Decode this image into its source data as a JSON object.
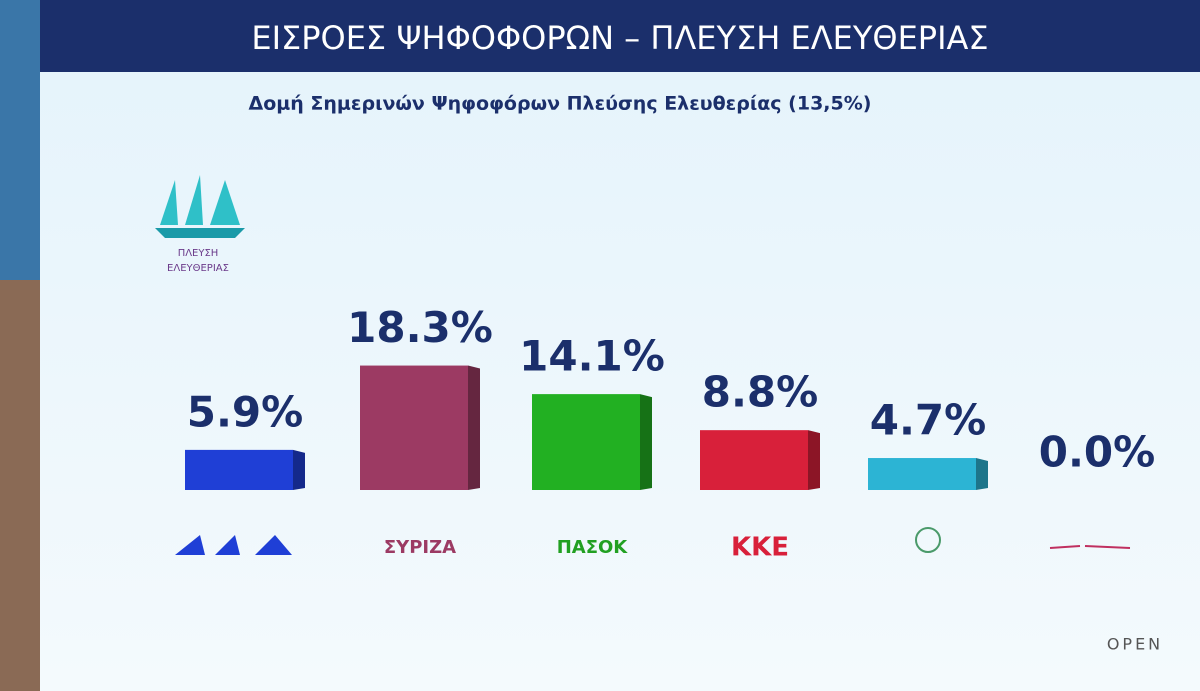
{
  "chart_data": {
    "type": "bar",
    "title": "ΕΙΣΡΟΕΣ ΨΗΦΟΦΟΡΩΝ – ΠΛΕΥΣΗ ΕΛΕΥΘΕΡΙΑΣ",
    "subtitle": "Δομή Σημερινών Ψηφοφόρων Πλεύσης Ελευθερίας (13,5%)",
    "logo_lines": [
      "ΠΛΕΥΣΗ",
      "ΕΛΕΥΘΕΡΙΑΣ"
    ],
    "watermark": "OPEN",
    "categories": [
      null,
      "ΣΥΡΙΖΑ",
      "ΠΑΣΟΚ",
      "ΚΚΕ",
      null,
      null
    ],
    "values": [
      5.9,
      18.3,
      14.1,
      8.8,
      4.7,
      0.0
    ],
    "value_labels": [
      "5.9%",
      "18.3%",
      "14.1%",
      "8.8%",
      "4.7%",
      "0.0%"
    ],
    "colors": [
      "#1f3fd6",
      "#9c3a63",
      "#22b022",
      "#d8203a",
      "#2cb4d4",
      "#888888"
    ],
    "category_colors": [
      "#1f3fd6",
      "#9c3a63",
      "#22a022",
      "#d8203a",
      "#4a9a6a",
      "#c03060"
    ]
  }
}
